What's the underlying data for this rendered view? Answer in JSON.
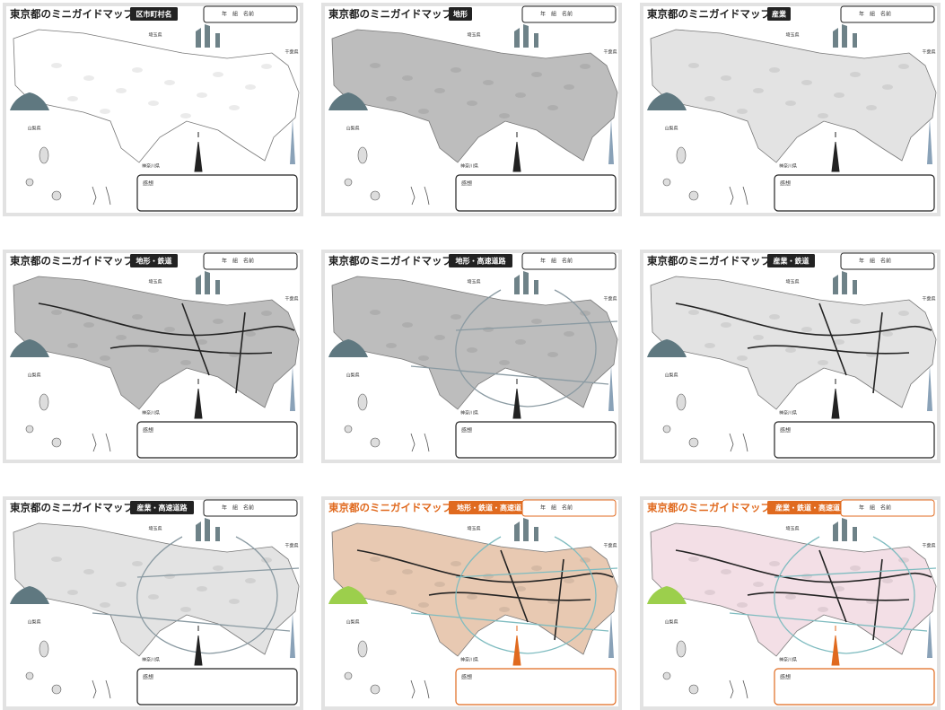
{
  "neighbors": [
    "埼玉県",
    "山梨県",
    "神奈川県",
    "千葉県"
  ],
  "cards": [
    {
      "title": "東京都のミニガイドマップ",
      "tag": "区市町村名",
      "name_box": "年　組　名前",
      "comment": "感想",
      "accent": "#222222",
      "map_fill": "#ffffff",
      "rail": false,
      "highway": false
    },
    {
      "title": "東京都のミニガイドマップ",
      "tag": "地形",
      "name_box": "年　組　名前",
      "comment": "感想",
      "accent": "#222222",
      "map_fill": "#bdbdbd",
      "rail": false,
      "highway": false
    },
    {
      "title": "東京都のミニガイドマップ",
      "tag": "産業",
      "name_box": "年　組　名前",
      "comment": "感想",
      "accent": "#222222",
      "map_fill": "#e3e3e3",
      "rail": false,
      "highway": false
    },
    {
      "title": "東京都のミニガイドマップ",
      "tag": "地形・鉄道",
      "name_box": "年　組　名前",
      "comment": "感想",
      "accent": "#222222",
      "map_fill": "#bdbdbd",
      "rail": true,
      "highway": false
    },
    {
      "title": "東京都のミニガイドマップ",
      "tag": "地形・高速道路",
      "name_box": "年　組　名前",
      "comment": "感想",
      "accent": "#222222",
      "map_fill": "#bdbdbd",
      "rail": false,
      "highway": true
    },
    {
      "title": "東京都のミニガイドマップ",
      "tag": "産業・鉄道",
      "name_box": "年　組　名前",
      "comment": "感想",
      "accent": "#222222",
      "map_fill": "#e3e3e3",
      "rail": true,
      "highway": false
    },
    {
      "title": "東京都のミニガイドマップ",
      "tag": "産業・高速道路",
      "name_box": "年　組　名前",
      "comment": "感想",
      "accent": "#222222",
      "map_fill": "#e3e3e3",
      "rail": false,
      "highway": true
    },
    {
      "title": "東京都のミニガイドマップ",
      "tag": "地形・鉄道・高速道路",
      "name_box": "年　組　名前",
      "comment": "感想",
      "accent": "#e06a1f",
      "map_fill": "#e8c9b2",
      "rail": true,
      "highway": true
    },
    {
      "title": "東京都のミニガイドマップ",
      "tag": "産業・鉄道・高速道路",
      "name_box": "年　組　名前",
      "comment": "感想",
      "accent": "#e06a1f",
      "map_fill": "#f3dfe6",
      "rail": true,
      "highway": true
    }
  ]
}
